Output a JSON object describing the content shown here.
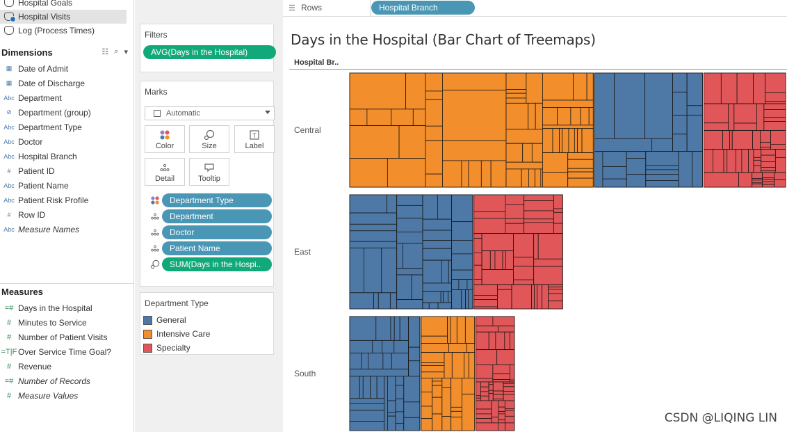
{
  "data_pane": {
    "data_sources": [
      {
        "label": "Hospital Goals",
        "active": false
      },
      {
        "label": "Hospital Visits",
        "active": true,
        "selected": true
      },
      {
        "label": "Log (Process Times)",
        "active": false
      }
    ],
    "dimensions_title": "Dimensions",
    "dimensions": [
      {
        "icon": "date",
        "icon_text": "▦",
        "label": "Date of Admit",
        "italic": false
      },
      {
        "icon": "date",
        "icon_text": "▦",
        "label": "Date of Discharge",
        "italic": false
      },
      {
        "icon": "string",
        "icon_text": "Abc",
        "label": "Department",
        "italic": false
      },
      {
        "icon": "group",
        "icon_text": "⊘",
        "label": "Department (group)",
        "italic": false
      },
      {
        "icon": "string",
        "icon_text": "Abc",
        "label": "Department Type",
        "italic": false
      },
      {
        "icon": "string",
        "icon_text": "Abc",
        "label": "Doctor",
        "italic": false
      },
      {
        "icon": "string",
        "icon_text": "Abc",
        "label": "Hospital Branch",
        "italic": false
      },
      {
        "icon": "number",
        "icon_text": "#",
        "label": "Patient ID",
        "italic": false
      },
      {
        "icon": "string",
        "icon_text": "Abc",
        "label": "Patient Name",
        "italic": false
      },
      {
        "icon": "string",
        "icon_text": "Abc",
        "label": "Patient Risk Profile",
        "italic": false
      },
      {
        "icon": "number",
        "icon_text": "#",
        "label": "Row ID",
        "italic": false
      },
      {
        "icon": "string",
        "icon_text": "Abc",
        "label": "Measure Names",
        "italic": true
      }
    ],
    "measures_title": "Measures",
    "measures": [
      {
        "icon": "calc-number",
        "icon_text": "=#",
        "label": "Days in the Hospital",
        "italic": false
      },
      {
        "icon": "number",
        "icon_text": "#",
        "label": "Minutes to Service",
        "italic": false
      },
      {
        "icon": "number",
        "icon_text": "#",
        "label": "Number of Patient Visits",
        "italic": false
      },
      {
        "icon": "calc-boolean",
        "icon_text": "=T|F",
        "label": "Over Service Time Goal?",
        "italic": false
      },
      {
        "icon": "number",
        "icon_text": "#",
        "label": "Revenue",
        "italic": false
      },
      {
        "icon": "calc-number",
        "icon_text": "=#",
        "label": "Number of Records",
        "italic": true
      },
      {
        "icon": "number",
        "icon_text": "#",
        "label": "Measure Values",
        "italic": true
      }
    ]
  },
  "filters_card": {
    "title": "Filters",
    "pills": [
      "AVG(Days in the Hospital)"
    ]
  },
  "marks_card": {
    "title": "Marks",
    "mark_type": "Automatic",
    "buttons": [
      {
        "label": "Color",
        "icon": "color-icon"
      },
      {
        "label": "Size",
        "icon": "size-icon"
      },
      {
        "label": "Label",
        "icon": "label-icon"
      },
      {
        "label": "Detail",
        "icon": "detail-icon"
      },
      {
        "label": "Tooltip",
        "icon": "tooltip-icon"
      }
    ],
    "fields": [
      {
        "role": "color",
        "icon": "color-icon",
        "label": "Department Type",
        "color": "blue"
      },
      {
        "role": "detail",
        "icon": "detail-icon",
        "label": "Department",
        "color": "blue"
      },
      {
        "role": "detail",
        "icon": "detail-icon",
        "label": "Doctor",
        "color": "blue"
      },
      {
        "role": "detail",
        "icon": "detail-icon",
        "label": "Patient Name",
        "color": "blue"
      },
      {
        "role": "size",
        "icon": "size-icon",
        "label": "SUM(Days in the Hospi..",
        "color": "green"
      }
    ]
  },
  "legend_card": {
    "title": "Department Type",
    "items": [
      {
        "label": "General",
        "color": "#4e79a7"
      },
      {
        "label": "Intensive Care",
        "color": "#f28e2b"
      },
      {
        "label": "Specialty",
        "color": "#e15759"
      }
    ]
  },
  "shelves": {
    "rows_label": "Rows",
    "rows_pills": [
      "Hospital Branch"
    ]
  },
  "viz": {
    "title": "Days in the Hospital (Bar Chart of Treemaps)",
    "column_header": "Hospital Br..",
    "watermark": "CSDN @LIQING LIN"
  },
  "chart_data": {
    "type": "bar",
    "subtype": "treemap-bars",
    "title": "Days in the Hospital (Bar Chart of Treemaps)",
    "row_dimension": "Hospital Branch",
    "color_dimension": "Department Type",
    "categories": [
      "Central",
      "East",
      "South"
    ],
    "legend": [
      {
        "name": "General",
        "color": "#4e79a7"
      },
      {
        "name": "Intensive Care",
        "color": "#f28e2b"
      },
      {
        "name": "Specialty",
        "color": "#e15759"
      }
    ],
    "rows": [
      {
        "branch": "Central",
        "bar_extent": 1.0,
        "segments": [
          {
            "type": "Intensive Care",
            "share": 0.56
          },
          {
            "type": "General",
            "share": 0.25
          },
          {
            "type": "Specialty",
            "share": 0.19
          }
        ]
      },
      {
        "branch": "East",
        "bar_extent": 0.49,
        "segments": [
          {
            "type": "General",
            "share": 0.58
          },
          {
            "type": "Specialty",
            "share": 0.42
          }
        ]
      },
      {
        "branch": "South",
        "bar_extent": 0.38,
        "segments": [
          {
            "type": "General",
            "share": 0.43
          },
          {
            "type": "Intensive Care",
            "share": 0.33
          },
          {
            "type": "Specialty",
            "share": 0.24
          }
        ]
      }
    ]
  }
}
